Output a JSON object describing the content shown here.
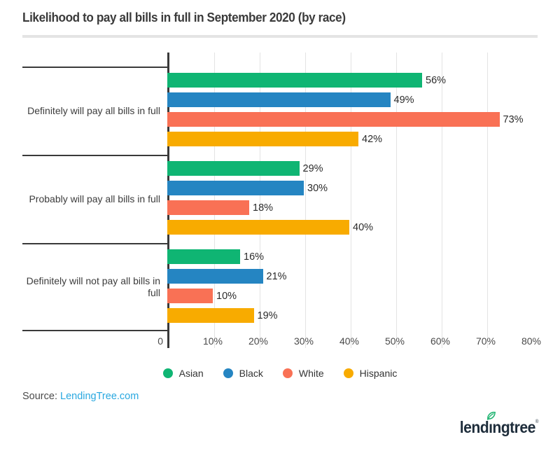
{
  "header": {
    "title": "Likelihood to pay all bills in full in September 2020 (by race)"
  },
  "chart_data": {
    "type": "bar",
    "orientation": "horizontal",
    "title": "Likelihood to pay all bills in full in September 2020 (by race)",
    "categories": [
      "Definitely will pay all bills in full",
      "Probably will pay all bills in full",
      "Definitely will not pay all bills in full"
    ],
    "series": [
      {
        "name": "Asian",
        "color": "#0FB573",
        "values": [
          56,
          29,
          16
        ]
      },
      {
        "name": "Black",
        "color": "#2585C2",
        "values": [
          49,
          30,
          21
        ]
      },
      {
        "name": "White",
        "color": "#F97155",
        "values": [
          73,
          18,
          10
        ]
      },
      {
        "name": "Hispanic",
        "color": "#F8AB00",
        "values": [
          42,
          40,
          19
        ]
      }
    ],
    "value_suffix": "%",
    "xlim": [
      0,
      80
    ],
    "x_ticks": [
      {
        "label": "0",
        "value": 0
      },
      {
        "label": "10%",
        "value": 10
      },
      {
        "label": "20%",
        "value": 20
      },
      {
        "label": "30%",
        "value": 30
      },
      {
        "label": "40%",
        "value": 40
      },
      {
        "label": "50%",
        "value": 50
      },
      {
        "label": "60%",
        "value": 60
      },
      {
        "label": "70%",
        "value": 70
      },
      {
        "label": "80%",
        "value": 80
      }
    ],
    "grid": true,
    "legend_position": "bottom"
  },
  "source": {
    "prefix": "Source: ",
    "link_text": "LendingTree.com"
  },
  "logo": {
    "text": "lendingtree",
    "trademark": "®",
    "text_color": "#1e2d3b",
    "leaf_color": "#22B573"
  },
  "colors": {
    "axis": "#3a3a3a",
    "gridline": "#e3e3e3",
    "divider": "#e4e4e4",
    "title_text": "#3b3b3b",
    "source_link": "#29a8e0"
  }
}
